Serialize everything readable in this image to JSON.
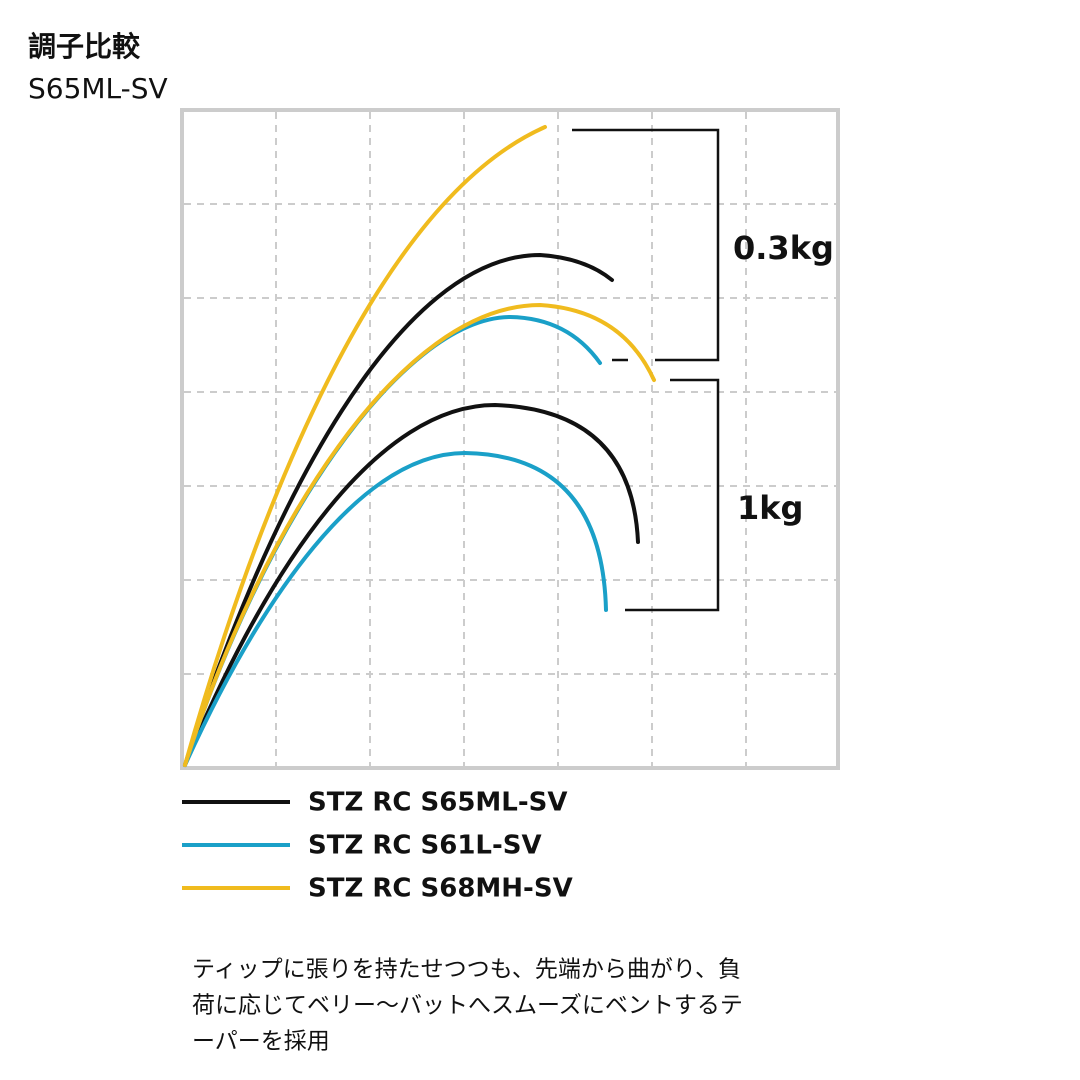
{
  "header": {
    "title": "調子比較",
    "subtitle": "S65ML-SV"
  },
  "annotations": {
    "upper": "0.3kg",
    "lower": "1kg"
  },
  "legend": {
    "items": [
      {
        "name": "STZ RC S65ML-SV",
        "color": "#111111"
      },
      {
        "name": "STZ RC S61L-SV",
        "color": "#1aa0c8"
      },
      {
        "name": "STZ RC S68MH-SV",
        "color": "#f0bb1e"
      }
    ]
  },
  "description": {
    "lines": [
      "ティップに張りを持たせつつも、先端から曲がり、負",
      "荷に応じてベリー～バットへスムーズにベントするテ",
      "ーパーを採用"
    ]
  }
}
